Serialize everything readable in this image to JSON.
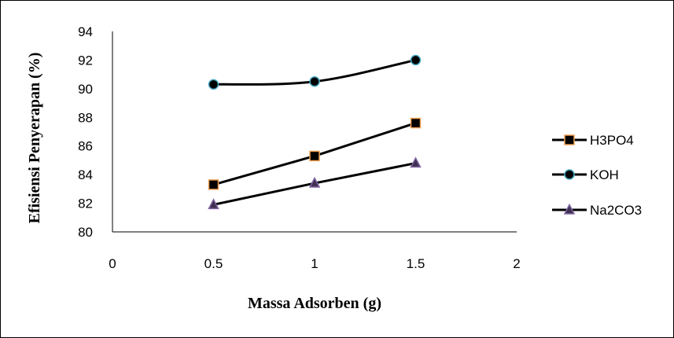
{
  "chart_data": {
    "type": "line",
    "title": "",
    "xlabel": "Massa Adsorben (g)",
    "ylabel": "Efisiensi Penyerapan (%)",
    "xlim": [
      0,
      2
    ],
    "ylim": [
      80,
      94
    ],
    "xticks": [
      0,
      0.5,
      1,
      1.5,
      2
    ],
    "yticks": [
      80,
      82,
      84,
      86,
      88,
      90,
      92,
      94
    ],
    "grid": false,
    "legend_position": "right",
    "series": [
      {
        "name": "H3PO4",
        "marker": "square",
        "line_color": "#000000",
        "marker_fill": "#000000",
        "marker_edge": "#f0a050",
        "x": [
          0.5,
          1,
          1.5
        ],
        "y": [
          83.3,
          85.3,
          87.6
        ],
        "smooth": false
      },
      {
        "name": "KOH",
        "marker": "circle",
        "line_color": "#000000",
        "marker_fill": "#000000",
        "marker_edge": "#4bacc6",
        "x": [
          0.5,
          1,
          1.5
        ],
        "y": [
          90.3,
          90.5,
          92.0
        ],
        "smooth": true
      },
      {
        "name": "Na2CO3",
        "marker": "triangle",
        "line_color": "#000000",
        "marker_fill": "#403152",
        "marker_edge": "#8064a2",
        "x": [
          0.5,
          1,
          1.5
        ],
        "y": [
          81.9,
          83.4,
          84.8
        ],
        "smooth": false
      }
    ]
  }
}
